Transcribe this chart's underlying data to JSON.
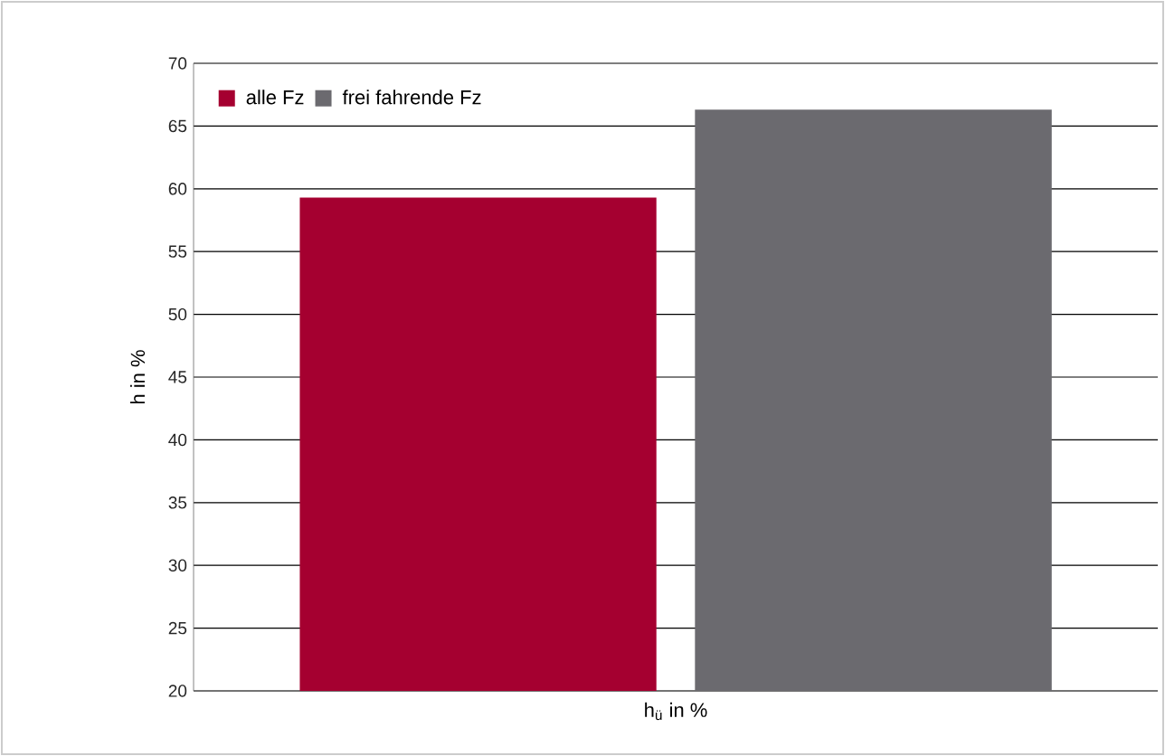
{
  "chart_data": {
    "type": "bar",
    "xlabel": "h$_{ü}$ in %",
    "ylabel": "h in %",
    "categories": [
      null
    ],
    "series": [
      {
        "name": "alle Fz",
        "color": "#a50030",
        "values": [
          59.3
        ]
      },
      {
        "name": "frei fahrende Fz",
        "color": "#6b6a6f",
        "values": [
          66.3
        ]
      }
    ],
    "ylim": [
      20,
      70
    ],
    "yticks": [
      20,
      25,
      30,
      35,
      40,
      45,
      50,
      55,
      60,
      65,
      70
    ],
    "grid": "y",
    "legend": "top left"
  }
}
